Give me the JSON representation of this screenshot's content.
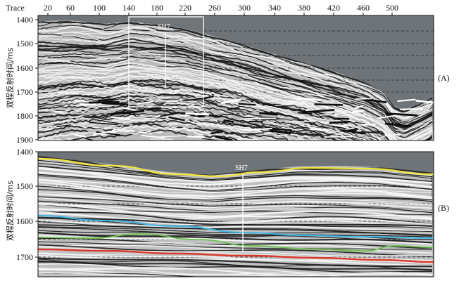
{
  "top_panel": {
    "trace_label": "Trace",
    "trace_ticks": [
      "20",
      "60",
      "100",
      "140",
      "180",
      "220",
      "260",
      "300",
      "340",
      "380",
      "420",
      "460",
      "500"
    ],
    "time_ticks": [
      "1400",
      "1500",
      "1600",
      "1700",
      "1800",
      "1900"
    ],
    "y_label": "双程反射时间/ms",
    "well_label": "SH7",
    "panel_label": "(A)"
  },
  "bottom_panel": {
    "time_ticks": [
      "1400",
      "1500",
      "1600",
      "1700"
    ],
    "y_label": "双程反射时间/ms",
    "well_label": "SH7",
    "panel_label": "(B)"
  },
  "colors": {
    "background_gray": "#6f7478",
    "horizon_yellow": "#f0e53a",
    "horizon_blue": "#3fb6e6",
    "horizon_green": "#6cc04a",
    "horizon_red": "#d93a2b"
  }
}
